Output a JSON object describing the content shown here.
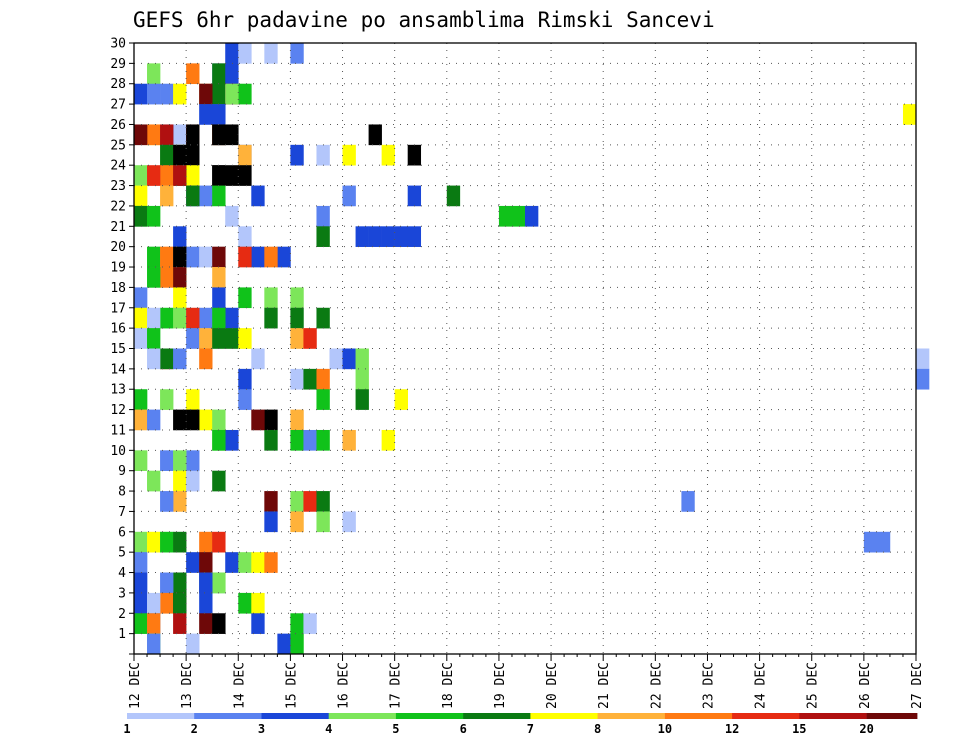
{
  "chart_data": {
    "type": "heatmap",
    "title": "GEFS 6hr padavine po ansamblima Rimski Sancevi",
    "x_axis": {
      "tick_labels": [
        "12 DEC",
        "13 DEC",
        "14 DEC",
        "15 DEC",
        "16 DEC",
        "17 DEC",
        "18 DEC",
        "19 DEC",
        "20 DEC",
        "21 DEC",
        "22 DEC",
        "23 DEC",
        "24 DEC",
        "25 DEC",
        "26 DEC",
        "27 DEC"
      ],
      "steps_per_day": 4,
      "range_steps": [
        0,
        60
      ]
    },
    "y_axis": {
      "tick_labels": [
        "1",
        "2",
        "3",
        "4",
        "5",
        "6",
        "7",
        "8",
        "9",
        "10",
        "11",
        "12",
        "13",
        "14",
        "15",
        "16",
        "17",
        "18",
        "19",
        "20",
        "21",
        "22",
        "23",
        "24",
        "25",
        "26",
        "27",
        "28",
        "29",
        "30"
      ],
      "range": [
        0,
        30
      ]
    },
    "grid": true,
    "colorbar": {
      "position": "bottom",
      "labels": [
        "1",
        "2",
        "3",
        "4",
        "5",
        "6",
        "7",
        "8",
        "10",
        "12",
        "15",
        "20"
      ],
      "colors": [
        "#b3c6fb",
        "#5a82f0",
        "#1a46d8",
        "#7de65a",
        "#10c21a",
        "#0a7a12",
        "#ffff00",
        "#ffb23a",
        "#ff7a12",
        "#e62b12",
        "#b01010",
        "#6e0808"
      ]
    },
    "cells": [
      [
        30,
        12,
        1
      ],
      [
        30,
        7,
        2
      ],
      [
        30,
        8,
        0
      ],
      [
        30,
        10,
        0
      ],
      [
        29,
        1,
        3
      ],
      [
        29,
        6,
        1
      ],
      [
        29,
        6,
        5
      ],
      [
        29,
        7,
        2
      ],
      [
        29,
        4,
        8
      ],
      [
        28,
        0,
        2
      ],
      [
        28,
        1,
        1
      ],
      [
        28,
        5,
        7
      ],
      [
        28,
        6,
        5
      ],
      [
        28,
        7,
        0
      ],
      [
        28,
        5,
        11
      ],
      [
        28,
        7,
        11
      ],
      [
        28,
        8,
        4
      ],
      [
        28,
        2,
        1
      ],
      [
        28,
        3,
        6
      ],
      [
        28,
        7,
        3
      ],
      [
        27,
        5,
        2
      ],
      [
        27,
        6,
        2
      ],
      [
        27,
        59,
        6
      ],
      [
        26,
        3,
        0
      ],
      [
        26,
        6,
        5
      ],
      [
        26,
        1,
        6
      ],
      [
        26,
        2,
        2
      ],
      [
        26,
        1,
        8
      ],
      [
        26,
        4,
        9
      ],
      [
        26,
        6,
        10
      ],
      [
        26,
        6,
        14
      ],
      [
        26,
        4,
        16
      ],
      [
        26,
        7,
        17
      ],
      [
        26,
        18,
        42
      ],
      [
        26,
        2,
        10
      ],
      [
        26,
        0,
        11
      ],
      [
        25,
        3,
        6
      ],
      [
        25,
        8,
        1
      ],
      [
        25,
        12,
        2
      ],
      [
        25,
        14,
        0
      ],
      [
        25,
        16,
        6
      ],
      [
        25,
        19,
        6
      ],
      [
        25,
        8,
        7
      ],
      [
        25,
        2,
        5
      ],
      [
        25,
        3,
        56
      ],
      [
        25,
        4,
        57
      ],
      [
        25,
        4,
        58
      ],
      [
        25,
        21,
        59
      ],
      [
        24,
        4,
        6
      ],
      [
        24,
        0,
        3
      ],
      [
        24,
        3,
        5
      ],
      [
        24,
        6,
        12
      ],
      [
        24,
        2,
        8
      ],
      [
        24,
        3,
        10
      ],
      [
        24,
        1,
        9
      ],
      [
        24,
        6,
        19
      ],
      [
        24,
        7,
        16
      ],
      [
        24,
        8,
        18
      ],
      [
        23,
        4,
        2
      ],
      [
        23,
        5,
        1
      ],
      [
        23,
        9,
        2
      ],
      [
        23,
        16,
        1
      ],
      [
        23,
        21,
        2
      ],
      [
        23,
        24,
        5
      ],
      [
        23,
        0,
        6
      ],
      [
        23,
        6,
        4
      ],
      [
        23,
        2,
        7
      ],
      [
        23,
        4,
        5
      ],
      [
        22,
        0,
        4
      ],
      [
        22,
        7,
        0
      ],
      [
        22,
        0,
        5
      ],
      [
        22,
        1,
        4
      ],
      [
        22,
        14,
        1
      ],
      [
        22,
        28,
        4
      ],
      [
        22,
        29,
        4
      ],
      [
        22,
        30,
        2
      ],
      [
        21,
        8,
        0
      ],
      [
        21,
        17,
        2
      ],
      [
        21,
        18,
        2
      ],
      [
        21,
        19,
        2
      ],
      [
        21,
        20,
        2
      ],
      [
        21,
        21,
        2
      ],
      [
        21,
        14,
        5
      ],
      [
        21,
        3,
        2
      ],
      [
        20,
        1,
        4
      ],
      [
        20,
        2,
        8
      ],
      [
        20,
        4,
        1
      ],
      [
        20,
        5,
        0
      ],
      [
        20,
        9,
        2
      ],
      [
        20,
        11,
        2
      ],
      [
        20,
        3,
        12
      ],
      [
        20,
        6,
        11
      ],
      [
        20,
        8,
        9
      ],
      [
        20,
        10,
        8
      ],
      [
        19,
        2,
        8
      ],
      [
        19,
        3,
        6
      ],
      [
        19,
        6,
        7
      ],
      [
        19,
        1,
        4
      ],
      [
        19,
        3,
        11
      ],
      [
        18,
        0,
        1
      ],
      [
        18,
        3,
        6
      ],
      [
        18,
        6,
        2
      ],
      [
        18,
        8,
        4
      ],
      [
        18,
        10,
        3
      ],
      [
        18,
        12,
        3
      ],
      [
        17,
        0,
        6
      ],
      [
        17,
        2,
        4
      ],
      [
        17,
        3,
        3
      ],
      [
        17,
        5,
        1
      ],
      [
        17,
        7,
        2
      ],
      [
        17,
        10,
        5
      ],
      [
        17,
        4,
        9
      ],
      [
        17,
        14,
        5
      ],
      [
        17,
        12,
        5
      ],
      [
        17,
        1,
        0
      ],
      [
        17,
        6,
        4
      ],
      [
        16,
        0,
        0
      ],
      [
        16,
        1,
        4
      ],
      [
        16,
        4,
        1
      ],
      [
        16,
        5,
        7
      ],
      [
        16,
        6,
        5
      ],
      [
        16,
        7,
        5
      ],
      [
        16,
        8,
        6
      ],
      [
        16,
        12,
        7
      ],
      [
        16,
        13,
        9
      ],
      [
        15,
        2,
        9
      ],
      [
        15,
        2,
        5
      ],
      [
        15,
        1,
        0
      ],
      [
        15,
        3,
        1
      ],
      [
        15,
        5,
        8
      ],
      [
        15,
        9,
        0
      ],
      [
        15,
        15,
        0
      ],
      [
        15,
        16,
        2
      ],
      [
        15,
        17,
        3
      ],
      [
        15,
        60,
        0
      ],
      [
        14,
        8,
        2
      ],
      [
        14,
        12,
        0
      ],
      [
        14,
        13,
        5
      ],
      [
        14,
        14,
        8
      ],
      [
        14,
        17,
        3
      ],
      [
        14,
        60,
        1
      ],
      [
        13,
        0,
        4
      ],
      [
        13,
        2,
        3
      ],
      [
        13,
        4,
        6
      ],
      [
        13,
        8,
        1
      ],
      [
        13,
        14,
        4
      ],
      [
        13,
        17,
        5
      ],
      [
        13,
        20,
        6
      ],
      [
        12,
        0,
        7
      ],
      [
        12,
        5,
        6
      ],
      [
        12,
        1,
        1
      ],
      [
        12,
        4,
        12
      ],
      [
        12,
        6,
        3
      ],
      [
        12,
        3,
        13
      ],
      [
        12,
        10,
        14
      ],
      [
        12,
        9,
        11
      ],
      [
        12,
        12,
        7
      ],
      [
        11,
        6,
        3
      ],
      [
        11,
        7,
        2
      ],
      [
        11,
        6,
        4
      ],
      [
        11,
        10,
        5
      ],
      [
        11,
        12,
        4
      ],
      [
        11,
        13,
        1
      ],
      [
        11,
        14,
        4
      ],
      [
        11,
        16,
        7
      ],
      [
        11,
        19,
        6
      ],
      [
        10,
        0,
        3
      ],
      [
        10,
        2,
        1
      ],
      [
        10,
        4,
        1
      ],
      [
        10,
        3,
        3
      ],
      [
        9,
        1,
        3
      ],
      [
        9,
        6,
        5
      ],
      [
        9,
        3,
        6
      ],
      [
        9,
        4,
        0
      ],
      [
        8,
        3,
        7
      ],
      [
        8,
        10,
        11
      ],
      [
        8,
        12,
        3
      ],
      [
        8,
        13,
        9
      ],
      [
        8,
        14,
        5
      ],
      [
        8,
        2,
        1
      ],
      [
        8,
        42,
        1
      ],
      [
        7,
        10,
        2
      ],
      [
        7,
        12,
        7
      ],
      [
        7,
        14,
        3
      ],
      [
        7,
        16,
        0
      ],
      [
        6,
        0,
        3
      ],
      [
        6,
        1,
        6
      ],
      [
        6,
        2,
        4
      ],
      [
        6,
        3,
        5
      ],
      [
        6,
        5,
        8
      ],
      [
        6,
        6,
        9
      ],
      [
        6,
        56,
        1
      ],
      [
        6,
        57,
        1
      ],
      [
        5,
        0,
        1
      ],
      [
        5,
        4,
        2
      ],
      [
        5,
        5,
        11
      ],
      [
        5,
        7,
        2
      ],
      [
        5,
        8,
        3
      ],
      [
        5,
        9,
        6
      ],
      [
        5,
        10,
        8
      ],
      [
        4,
        0,
        2
      ],
      [
        4,
        3,
        2
      ],
      [
        4,
        3,
        5
      ],
      [
        4,
        2,
        1
      ],
      [
        4,
        5,
        6
      ],
      [
        4,
        5,
        2
      ],
      [
        4,
        6,
        4
      ],
      [
        4,
        6,
        3
      ],
      [
        4,
        5,
        2
      ],
      [
        3,
        2,
        8
      ],
      [
        3,
        3,
        11
      ],
      [
        3,
        5,
        2
      ],
      [
        3,
        8,
        4
      ],
      [
        3,
        9,
        6
      ],
      [
        3,
        3,
        5
      ],
      [
        3,
        0,
        2
      ],
      [
        3,
        1,
        0
      ],
      [
        2,
        0,
        4
      ],
      [
        2,
        1,
        1
      ],
      [
        2,
        3,
        10
      ],
      [
        2,
        5,
        11
      ],
      [
        2,
        6,
        14
      ],
      [
        2,
        1,
        8
      ],
      [
        2,
        9,
        2
      ],
      [
        2,
        12,
        4
      ],
      [
        2,
        13,
        0
      ],
      [
        1,
        1,
        3
      ],
      [
        1,
        1,
        3
      ],
      [
        1,
        1,
        1
      ],
      [
        1,
        4,
        0
      ],
      [
        1,
        11,
        2
      ],
      [
        1,
        12,
        4
      ]
    ]
  }
}
